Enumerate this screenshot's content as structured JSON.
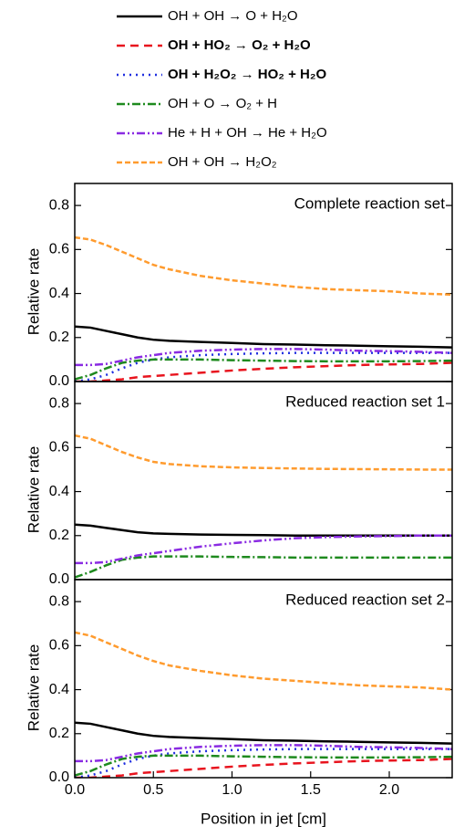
{
  "chart_data": [
    {
      "type": "line",
      "title": "Complete reaction set",
      "ylabel": "Relative rate",
      "x": [
        0,
        0.1,
        0.2,
        0.3,
        0.4,
        0.5,
        0.6,
        0.8,
        1.0,
        1.2,
        1.4,
        1.6,
        1.8,
        2.0,
        2.2,
        2.4
      ],
      "xlim": [
        0,
        2.4
      ],
      "ylim": [
        0,
        0.9
      ],
      "yticks": [
        {
          "value": 0,
          "label": "0.0"
        },
        0.2,
        0.4,
        0.6,
        0.8
      ],
      "series": [
        {
          "name": "OH + OH → O + H₂O",
          "color": "#000000",
          "dash": "none",
          "values": [
            0.25,
            0.245,
            0.23,
            0.215,
            0.2,
            0.19,
            0.185,
            0.18,
            0.175,
            0.17,
            0.168,
            0.165,
            0.163,
            0.16,
            0.158,
            0.155
          ]
        },
        {
          "name": "OH + HO₂ → O₂ + H₂O",
          "color": "#e8141e",
          "dash": "9,6",
          "values": [
            0,
            0,
            0.005,
            0.01,
            0.02,
            0.025,
            0.03,
            0.04,
            0.05,
            0.058,
            0.065,
            0.07,
            0.075,
            0.078,
            0.08,
            0.085
          ]
        },
        {
          "name": "OH + H₂O₂ → HO₂ + H₂O",
          "color": "#1f2ee0",
          "dash": "2,5",
          "values": [
            0,
            0.01,
            0.03,
            0.06,
            0.085,
            0.1,
            0.11,
            0.12,
            0.125,
            0.128,
            0.13,
            0.13,
            0.13,
            0.13,
            0.13,
            0.13
          ]
        },
        {
          "name": "OH + O → O₂ + H",
          "color": "#1e8a1e",
          "dash": "9,3,2,3",
          "values": [
            0.01,
            0.03,
            0.06,
            0.085,
            0.095,
            0.1,
            0.1,
            0.1,
            0.097,
            0.095,
            0.093,
            0.092,
            0.092,
            0.092,
            0.093,
            0.095
          ]
        },
        {
          "name": "He + H + OH → He + H₂O",
          "color": "#8a2be2",
          "dash": "9,3,2,3,2,3",
          "values": [
            0.075,
            0.075,
            0.08,
            0.095,
            0.11,
            0.12,
            0.13,
            0.14,
            0.145,
            0.148,
            0.148,
            0.145,
            0.14,
            0.138,
            0.135,
            0.13
          ]
        },
        {
          "name": "OH + OH → H₂O₂",
          "color": "#ff9b2e",
          "dash": "6,3",
          "values": [
            0.655,
            0.645,
            0.62,
            0.59,
            0.56,
            0.53,
            0.51,
            0.48,
            0.46,
            0.445,
            0.43,
            0.42,
            0.415,
            0.41,
            0.4,
            0.395
          ]
        }
      ]
    },
    {
      "type": "line",
      "title": "Reduced reaction set 1",
      "ylabel": "Relative rate",
      "x": [
        0,
        0.1,
        0.2,
        0.3,
        0.4,
        0.5,
        0.6,
        0.8,
        1.0,
        1.2,
        1.4,
        1.6,
        1.8,
        2.0,
        2.2,
        2.4
      ],
      "xlim": [
        0,
        2.4
      ],
      "ylim": [
        0,
        0.9
      ],
      "yticks": [
        {
          "value": 0,
          "label": "0.0"
        },
        0.2,
        0.4,
        0.6,
        0.8
      ],
      "series": [
        {
          "color": "#000000",
          "dash": "none",
          "values": [
            0.25,
            0.245,
            0.235,
            0.225,
            0.215,
            0.21,
            0.208,
            0.205,
            0.203,
            0.202,
            0.2,
            0.2,
            0.2,
            0.2,
            0.2,
            0.2
          ]
        },
        {
          "color": "#1e8a1e",
          "dash": "9,3,2,3",
          "values": [
            0.01,
            0.035,
            0.065,
            0.09,
            0.1,
            0.105,
            0.105,
            0.105,
            0.103,
            0.102,
            0.1,
            0.1,
            0.1,
            0.1,
            0.1,
            0.1
          ]
        },
        {
          "color": "#8a2be2",
          "dash": "9,3,2,3,2,3",
          "values": [
            0.075,
            0.075,
            0.08,
            0.095,
            0.11,
            0.12,
            0.13,
            0.15,
            0.165,
            0.178,
            0.188,
            0.193,
            0.196,
            0.198,
            0.2,
            0.2
          ]
        },
        {
          "color": "#ff9b2e",
          "dash": "6,3",
          "values": [
            0.655,
            0.64,
            0.61,
            0.58,
            0.555,
            0.535,
            0.525,
            0.515,
            0.51,
            0.507,
            0.505,
            0.503,
            0.502,
            0.501,
            0.5,
            0.5
          ]
        }
      ]
    },
    {
      "type": "line",
      "title": "Reduced reaction set 2",
      "ylabel": "Relative rate",
      "xlabel": "Position in jet [cm]",
      "x": [
        0,
        0.1,
        0.2,
        0.3,
        0.4,
        0.5,
        0.6,
        0.8,
        1.0,
        1.2,
        1.4,
        1.6,
        1.8,
        2.0,
        2.2,
        2.4
      ],
      "xlim": [
        0,
        2.4
      ],
      "ylim": [
        0,
        0.9
      ],
      "xticks": [
        {
          "value": 0,
          "label": "0.0"
        },
        0.5,
        {
          "value": 1,
          "label": "1.0"
        },
        1.5,
        {
          "value": 2,
          "label": "2.0"
        }
      ],
      "yticks": [
        {
          "value": 0,
          "label": "0.0"
        },
        0.2,
        0.4,
        0.6,
        0.8
      ],
      "series": [
        {
          "color": "#000000",
          "dash": "none",
          "values": [
            0.25,
            0.245,
            0.23,
            0.215,
            0.2,
            0.19,
            0.185,
            0.18,
            0.175,
            0.17,
            0.168,
            0.165,
            0.163,
            0.16,
            0.158,
            0.155
          ]
        },
        {
          "color": "#e8141e",
          "dash": "9,6",
          "values": [
            0,
            0,
            0.005,
            0.01,
            0.02,
            0.025,
            0.03,
            0.04,
            0.05,
            0.058,
            0.065,
            0.07,
            0.075,
            0.078,
            0.08,
            0.085
          ]
        },
        {
          "color": "#1f2ee0",
          "dash": "2,5",
          "values": [
            0,
            0.01,
            0.03,
            0.06,
            0.085,
            0.1,
            0.11,
            0.12,
            0.125,
            0.128,
            0.13,
            0.13,
            0.13,
            0.13,
            0.13,
            0.13
          ]
        },
        {
          "color": "#1e8a1e",
          "dash": "9,3,2,3",
          "values": [
            0.01,
            0.03,
            0.06,
            0.085,
            0.095,
            0.1,
            0.1,
            0.1,
            0.097,
            0.095,
            0.093,
            0.092,
            0.092,
            0.092,
            0.093,
            0.095
          ]
        },
        {
          "color": "#8a2be2",
          "dash": "9,3,2,3,2,3",
          "values": [
            0.075,
            0.075,
            0.08,
            0.095,
            0.11,
            0.12,
            0.13,
            0.14,
            0.145,
            0.148,
            0.148,
            0.145,
            0.14,
            0.138,
            0.135,
            0.13
          ]
        },
        {
          "color": "#ff9b2e",
          "dash": "6,3",
          "values": [
            0.66,
            0.645,
            0.615,
            0.585,
            0.555,
            0.53,
            0.51,
            0.485,
            0.465,
            0.45,
            0.44,
            0.43,
            0.42,
            0.415,
            0.41,
            0.4
          ]
        }
      ]
    }
  ]
}
